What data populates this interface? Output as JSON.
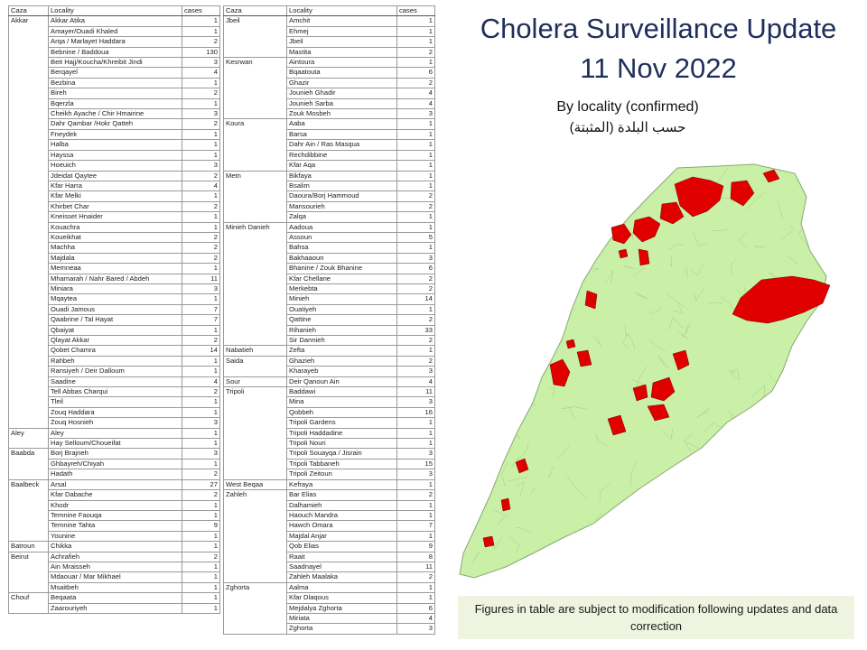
{
  "title_line1": "Cholera Surveillance Update",
  "title_line2": "11 Nov 2022",
  "subtitle_en": "By locality (confirmed)",
  "subtitle_ar": "حسب البلدة (المثبتة)",
  "footer_note": "Figures in table are subject to modification following updates and data correction",
  "headers": {
    "caza": "Caza",
    "locality": "Locality",
    "cases": "cases"
  },
  "colors": {
    "affected": "#e00000",
    "land": "#c9f0a6",
    "border": "#8aa775",
    "title": "#1f2e5a"
  },
  "left_table": [
    {
      "caza": "Akkar",
      "rows": [
        [
          "Akkar Atika",
          1
        ],
        [
          "Amayer/Ouadi Khaled",
          1
        ],
        [
          "Arqa / Marlayet Haddara",
          2
        ],
        [
          "Bebnine / Baddoua",
          130
        ],
        [
          "Beit Hajj/Koucha/Khreibit Jindi",
          3
        ],
        [
          "Berqayel",
          4
        ],
        [
          "Bezbina",
          1
        ],
        [
          "Bireh",
          2
        ],
        [
          "Bqerzla",
          1
        ],
        [
          "Cheikh Ayache / Chir Hmairine",
          3
        ],
        [
          "Dahr Qambar /Hokr Qatteh",
          2
        ],
        [
          "Fneydek",
          1
        ],
        [
          "Halba",
          1
        ],
        [
          "Hayssa",
          1
        ],
        [
          "Hoeuich",
          3
        ],
        [
          "Jdeidat Qaytee",
          2
        ],
        [
          "Kfar Harra",
          4
        ],
        [
          "Kfar Melki",
          1
        ],
        [
          "Khirbet Char",
          2
        ],
        [
          "Kneisset Hnaider",
          1
        ],
        [
          "Kouachra",
          1
        ],
        [
          "Koueikhat",
          2
        ],
        [
          "Machha",
          2
        ],
        [
          "Majdala",
          2
        ],
        [
          "Memneaa",
          1
        ],
        [
          "Mhamarah / Nahr Bared / Abdeh",
          11
        ],
        [
          "Miniara",
          3
        ],
        [
          "Mqaytea",
          1
        ],
        [
          "Ouadi Jamous",
          7
        ],
        [
          "Qaabrine / Tal Hayat",
          7
        ],
        [
          "Qbaiyat",
          1
        ],
        [
          "Qlayat Akkar",
          2
        ],
        [
          "Qobet Chamra",
          14
        ],
        [
          "Rahbeh",
          1
        ],
        [
          "Ransiyeh / Deir Dalloum",
          1
        ],
        [
          "Saadine",
          4
        ],
        [
          "Tell Abbas Charqui",
          2
        ],
        [
          "Tleil",
          1
        ],
        [
          "Zouq Haddara",
          1
        ],
        [
          "Zouq Hosnieh",
          3
        ]
      ]
    },
    {
      "caza": "Aley",
      "rows": [
        [
          "Aley",
          1
        ],
        [
          "Hay Selloum/Choueifat",
          1
        ]
      ]
    },
    {
      "caza": "Baabda",
      "rows": [
        [
          "Borj Brajneh",
          3
        ],
        [
          "Ghbayreh/Chiyah",
          1
        ],
        [
          "Hadath",
          2
        ]
      ]
    },
    {
      "caza": "Baalbeck",
      "rows": [
        [
          "Arsal",
          27
        ],
        [
          "Kfar Dabache",
          2
        ],
        [
          "Khodr",
          1
        ],
        [
          "Temnine Faouqa",
          1
        ],
        [
          "Temnine Tahta",
          9
        ],
        [
          "Younine",
          1
        ]
      ]
    },
    {
      "caza": "Batroun",
      "rows": [
        [
          "Chikka",
          1
        ]
      ]
    },
    {
      "caza": "Beirut",
      "rows": [
        [
          "Achrafieh",
          2
        ],
        [
          "Ain Mraisseh",
          1
        ],
        [
          "Mdaouar / Mar Mikhael",
          1
        ],
        [
          "Msaitbeh",
          1
        ]
      ]
    },
    {
      "caza": "Chouf",
      "rows": [
        [
          "Beqaata",
          1
        ],
        [
          "Zaarouriyeh",
          1
        ]
      ]
    }
  ],
  "right_table": [
    {
      "caza": "Jbeil",
      "rows": [
        [
          "Amchit",
          1
        ],
        [
          "Ehmej",
          1
        ],
        [
          "Jbeil",
          1
        ],
        [
          "Mastita",
          2
        ]
      ]
    },
    {
      "caza": "Kesrwan",
      "rows": [
        [
          "Aintoura",
          1
        ],
        [
          "Bqaatouta",
          6
        ],
        [
          "Ghazir",
          2
        ],
        [
          "Jounieh Ghadir",
          4
        ],
        [
          "Jounieh Sarba",
          4
        ],
        [
          "Zouk Mosbeh",
          3
        ]
      ]
    },
    {
      "caza": "Koura",
      "rows": [
        [
          "Aaba",
          1
        ],
        [
          "Barsa",
          1
        ],
        [
          "Dahr Ain / Ras Masqua",
          1
        ],
        [
          "Rechdibbine",
          1
        ],
        [
          "Kfar Aqa",
          1
        ]
      ]
    },
    {
      "caza": "Metn",
      "rows": [
        [
          "Bikfaya",
          1
        ],
        [
          "Bsalim",
          1
        ],
        [
          "Daoura/Borj Hammoud",
          2
        ],
        [
          "Mansourieh",
          2
        ],
        [
          "Zalqa",
          1
        ]
      ]
    },
    {
      "caza": "Minieh Danieh",
      "rows": [
        [
          "Aadoua",
          1
        ],
        [
          "Assoun",
          5
        ],
        [
          "Bahsa",
          1
        ],
        [
          "Bakhaaoun",
          3
        ],
        [
          "Bhanine / Zouk Bhanine",
          6
        ],
        [
          "Kfar Chellane",
          2
        ],
        [
          "Merkebta",
          2
        ],
        [
          "Minieh",
          14
        ],
        [
          "Ouatiyeh",
          1
        ],
        [
          "Qattine",
          2
        ],
        [
          "Rihanieh",
          33
        ],
        [
          "Sir Dannieh",
          2
        ]
      ]
    },
    {
      "caza": "Nabatieh",
      "rows": [
        [
          "Zefta",
          1
        ]
      ]
    },
    {
      "caza": "Saida",
      "rows": [
        [
          "Ghazieh",
          2
        ],
        [
          "Kharayeb",
          3
        ]
      ]
    },
    {
      "caza": "Sour",
      "rows": [
        [
          "Deir Qanoun Ain",
          4
        ]
      ]
    },
    {
      "caza": "Tripoli",
      "rows": [
        [
          "Baddawi",
          11
        ],
        [
          "Mina",
          3
        ],
        [
          "Qobbeh",
          16
        ],
        [
          "Tripoli Gardens",
          1
        ],
        [
          "Tripoli Haddadine",
          1
        ],
        [
          "Tripoli Nouri",
          1
        ],
        [
          "Tripoli Souayqa / Jisrain",
          3
        ],
        [
          "Tripoli Tabbaneh",
          15
        ],
        [
          "Tripoli Zeitoun",
          3
        ]
      ]
    },
    {
      "caza": "West Beqaa",
      "rows": [
        [
          "Kefraya",
          1
        ]
      ]
    },
    {
      "caza": "Zahleh",
      "rows": [
        [
          "Bar Elias",
          2
        ],
        [
          "Dalhamieh",
          1
        ],
        [
          "Haouch Mandra",
          1
        ],
        [
          "Hawch Omara",
          7
        ],
        [
          "Majdal Anjar",
          1
        ],
        [
          "Qob Elias",
          9
        ],
        [
          "Raait",
          8
        ],
        [
          "Saadnayel",
          11
        ],
        [
          "Zahleh Maalaka",
          2
        ]
      ]
    },
    {
      "caza": "Zghorta",
      "rows": [
        [
          "Aalma",
          1
        ],
        [
          "Kfar Dlaqous",
          1
        ],
        [
          "Mejdalya Zghorta",
          6
        ],
        [
          "Miriata",
          4
        ],
        [
          "Zghorta",
          3
        ]
      ]
    }
  ]
}
